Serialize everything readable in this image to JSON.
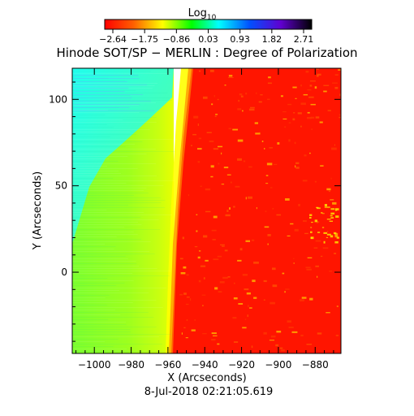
{
  "chart_data": {
    "type": "heatmap",
    "title": "Hinode SOT/SP − MERLIN : Degree of Polarization",
    "colorbar": {
      "label_main": "Log",
      "label_sub": "10",
      "ticks": [
        "−2.64",
        "−1.75",
        "−0.86",
        "0.03",
        "0.93",
        "1.82",
        "2.71"
      ],
      "colormap": [
        "#ff0000",
        "#ffff00",
        "#00ff00",
        "#00ffff",
        "#0000ff",
        "#8000ff",
        "#000000"
      ]
    },
    "xlabel": "X (Arcseconds)",
    "ylabel": "Y (Arcseconds)",
    "x_ticks": [
      -1000,
      -980,
      -960,
      -940,
      -920,
      -900,
      -880
    ],
    "x_tick_labels": [
      "−1000",
      "−980",
      "−960",
      "−940",
      "−920",
      "−900",
      "−880"
    ],
    "y_ticks": [
      0,
      50,
      100
    ],
    "y_tick_labels": [
      "0",
      "50",
      "100"
    ],
    "xlim": [
      -1012,
      -866
    ],
    "ylim": [
      -47,
      118
    ],
    "limb_x": [
      -960,
      -951
    ],
    "regions": [
      {
        "region": "off-disk (near limb)",
        "color": "#ccff33",
        "log10_value": -1.6
      },
      {
        "region": "off-disk (far, lower)",
        "color": "#88ff44",
        "log10_value": -0.9
      },
      {
        "region": "off-disk (far, upper)",
        "color": "#33ffd5",
        "log10_value": 0.3
      },
      {
        "region": "solar disk",
        "color": "#ff1a00",
        "log10_value": -2.6
      }
    ],
    "timestamp": "8-Jul-2018 02:21:05.619"
  }
}
